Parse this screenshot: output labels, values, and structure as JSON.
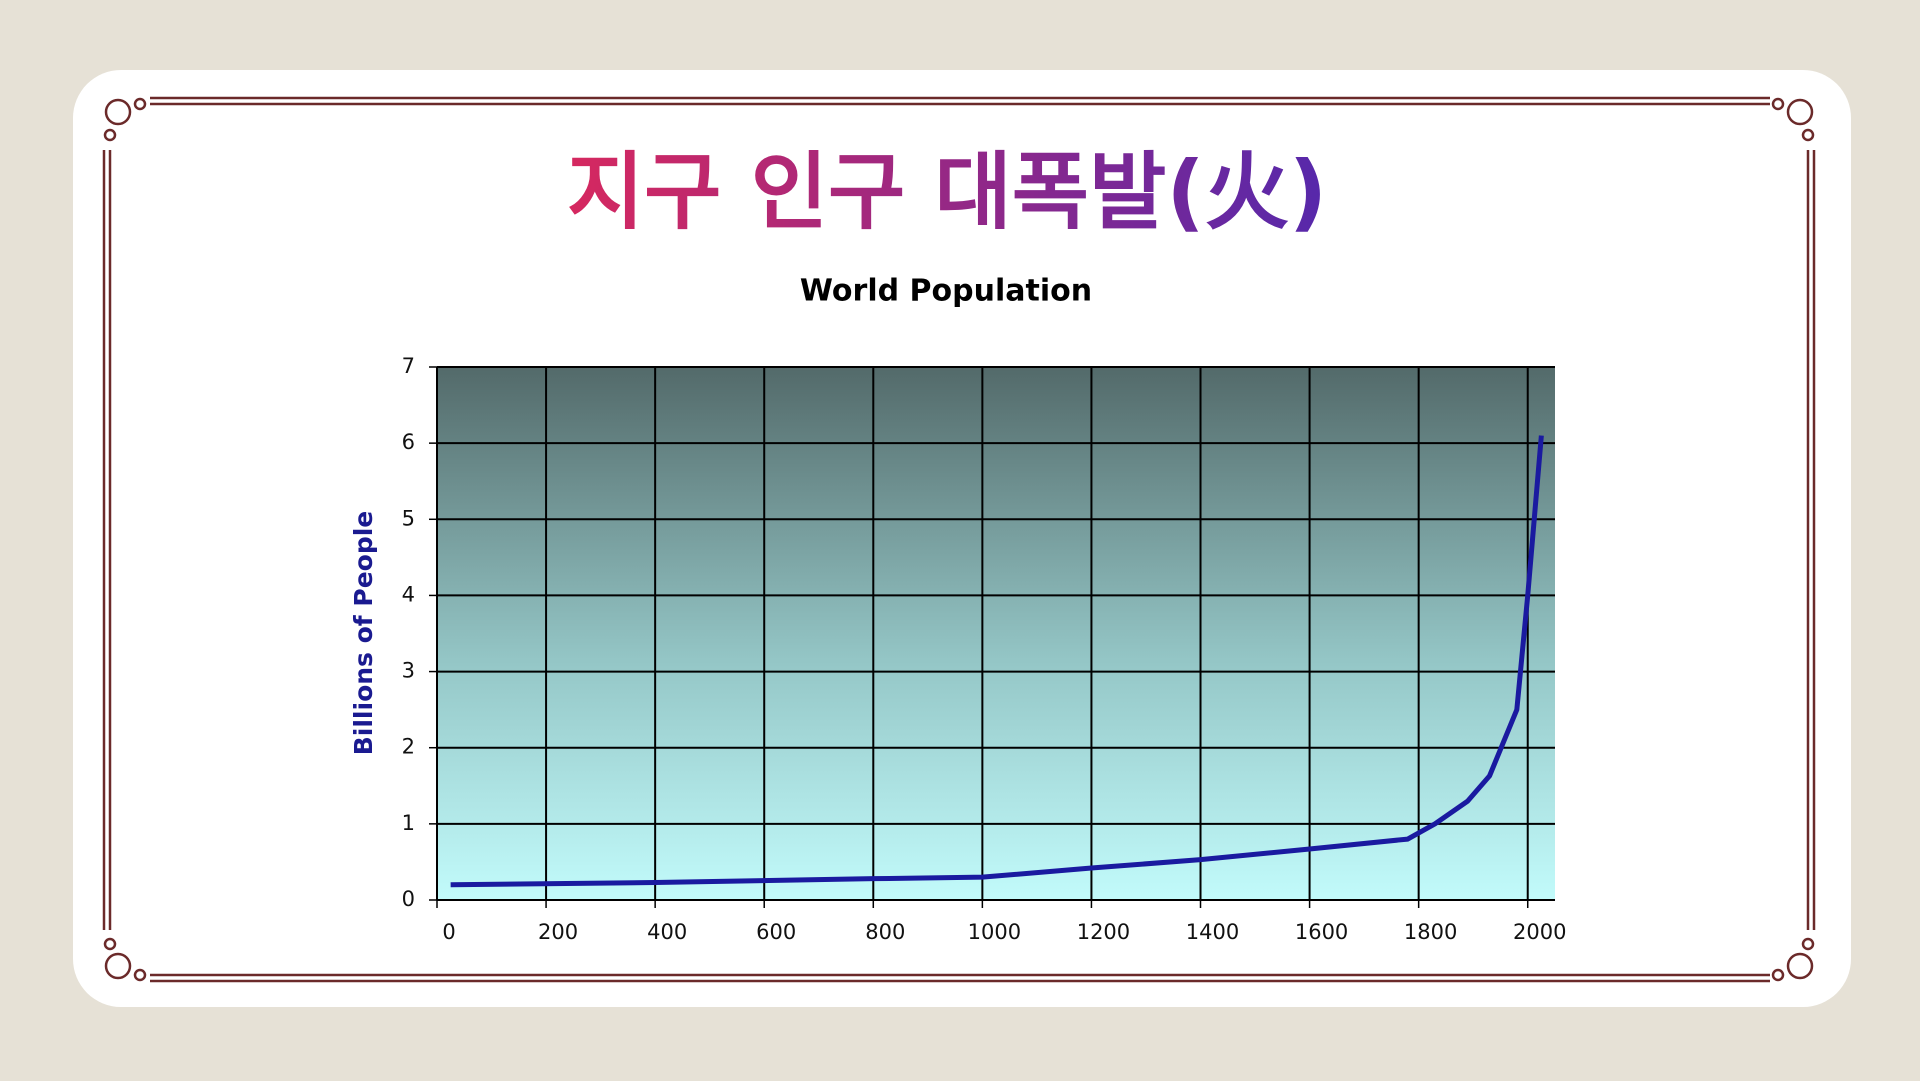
{
  "slide_title": "지구 인구 대폭발(火)",
  "chart_data": {
    "type": "line",
    "title": "World Population",
    "y_label": "Billions of People",
    "x": [
      25,
      400,
      800,
      1000,
      1200,
      1400,
      1600,
      1780,
      1830,
      1890,
      1930,
      1980,
      2000,
      2025
    ],
    "values": [
      0.2,
      0.23,
      0.28,
      0.3,
      0.42,
      0.53,
      0.67,
      0.8,
      1.0,
      1.3,
      1.63,
      2.5,
      4.0,
      6.1
    ],
    "color": "#1a1aa0",
    "xlim": [
      0,
      2050
    ],
    "xticks": [
      0,
      200,
      400,
      600,
      800,
      1000,
      1200,
      1400,
      1600,
      1800,
      2000
    ],
    "ylim": [
      0,
      7
    ],
    "yticks": [
      0,
      1,
      2,
      3,
      4,
      5,
      6,
      7
    ],
    "grid": true
  }
}
